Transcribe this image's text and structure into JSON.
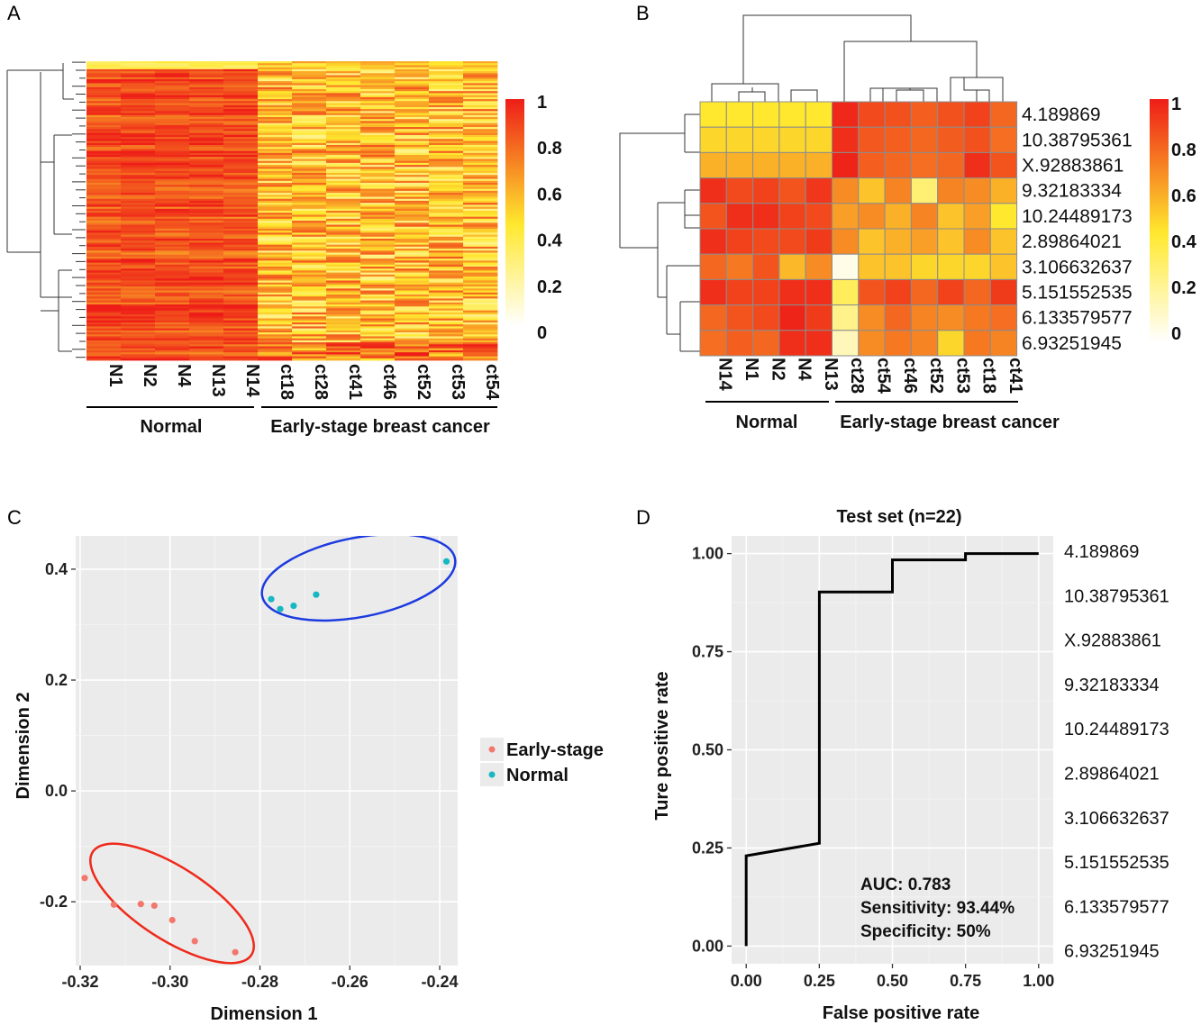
{
  "panels": {
    "A": "A",
    "B": "B",
    "C": "C",
    "D": "D"
  },
  "colors": {
    "high": "#ee1d18",
    "mid": "#ffe82e",
    "low": "#ffffff",
    "early": "#f2786d",
    "normal": "#17b8c2",
    "ellipse_normal": "#1c3adf",
    "ellipse_early": "#ee2a1b",
    "plot_bg": "#ebebeb"
  },
  "chart_data": [
    {
      "panel": "A",
      "type": "heatmap",
      "columns": [
        "N1",
        "N2",
        "N4",
        "N13",
        "N14",
        "ct18",
        "ct28",
        "ct41",
        "ct46",
        "ct52",
        "ct53",
        "ct54"
      ],
      "groups": [
        {
          "name": "Normal",
          "columns": [
            "N1",
            "N2",
            "N4",
            "N13",
            "N14"
          ]
        },
        {
          "name": "Early-stage breast cancer",
          "columns": [
            "ct18",
            "ct28",
            "ct41",
            "ct46",
            "ct52",
            "ct53",
            "ct54"
          ]
        }
      ],
      "colorbar": {
        "min": 0,
        "max": 1,
        "ticks": [
          "1",
          "0.8",
          "0.6",
          "0.4",
          "0.2",
          "0"
        ]
      },
      "row_dendrogram": true
    },
    {
      "panel": "B",
      "type": "heatmap",
      "columns": [
        "N14",
        "N1",
        "N2",
        "N4",
        "N13",
        "ct28",
        "ct54",
        "ct46",
        "ct52",
        "ct53",
        "ct18",
        "ct41"
      ],
      "rows": [
        "4.189869",
        "10.38795361",
        "X.92883861",
        "9.32183334",
        "10.24489173",
        "2.89864021",
        "3.106632637",
        "5.151552535",
        "6.133579577",
        "6.93251945"
      ],
      "values": [
        [
          0.45,
          0.45,
          0.45,
          0.45,
          0.45,
          0.97,
          0.88,
          0.86,
          0.82,
          0.86,
          0.9,
          0.8
        ],
        [
          0.5,
          0.5,
          0.5,
          0.5,
          0.5,
          0.95,
          0.84,
          0.82,
          0.8,
          0.83,
          0.86,
          0.78
        ],
        [
          0.6,
          0.6,
          0.6,
          0.6,
          0.6,
          0.98,
          0.82,
          0.8,
          0.78,
          0.8,
          0.95,
          0.85
        ],
        [
          0.95,
          0.88,
          0.9,
          0.85,
          0.93,
          0.7,
          0.55,
          0.72,
          0.3,
          0.72,
          0.7,
          0.6
        ],
        [
          0.85,
          0.95,
          0.95,
          0.9,
          0.88,
          0.65,
          0.7,
          0.6,
          0.72,
          0.55,
          0.65,
          0.45
        ],
        [
          0.95,
          0.9,
          0.88,
          0.88,
          0.92,
          0.7,
          0.55,
          0.6,
          0.65,
          0.55,
          0.7,
          0.55
        ],
        [
          0.8,
          0.75,
          0.85,
          0.58,
          0.7,
          0.05,
          0.55,
          0.55,
          0.5,
          0.5,
          0.5,
          0.55
        ],
        [
          0.95,
          0.9,
          0.9,
          0.95,
          0.95,
          0.35,
          0.85,
          0.9,
          0.8,
          0.9,
          0.8,
          0.92
        ],
        [
          0.8,
          0.85,
          0.88,
          0.98,
          0.92,
          0.25,
          0.7,
          0.8,
          0.72,
          0.7,
          0.75,
          0.78
        ],
        [
          0.78,
          0.82,
          0.8,
          0.95,
          0.95,
          0.15,
          0.7,
          0.75,
          0.72,
          0.5,
          0.75,
          0.72
        ]
      ],
      "groups": [
        {
          "name": "Normal",
          "columns": [
            "N14",
            "N1",
            "N2",
            "N4",
            "N13"
          ]
        },
        {
          "name": "Early-stage breast cancer",
          "columns": [
            "ct28",
            "ct54",
            "ct46",
            "ct52",
            "ct53",
            "ct18",
            "ct41"
          ]
        }
      ],
      "colorbar": {
        "min": 0,
        "max": 1,
        "ticks": [
          "1",
          "0.8",
          "0.6",
          "0.4",
          "0.2",
          "0"
        ]
      }
    },
    {
      "panel": "C",
      "type": "scatter",
      "xlabel": "Dimension 1",
      "ylabel": "Dimension 2",
      "xlim": [
        -0.321,
        -0.236
      ],
      "ylim": [
        -0.315,
        0.46
      ],
      "xticks": [
        "-0.32",
        "-0.30",
        "-0.28",
        "-0.26",
        "-0.24"
      ],
      "xtick_values": [
        -0.32,
        -0.3,
        -0.28,
        -0.26,
        -0.24
      ],
      "yticks": [
        "0.4",
        "0.2",
        "0.0",
        "-0.2"
      ],
      "ytick_values": [
        0.4,
        0.2,
        0.0,
        -0.2
      ],
      "series": [
        {
          "name": "Early-stage",
          "points": [
            [
              -0.319,
              -0.157
            ],
            [
              -0.3125,
              -0.205
            ],
            [
              -0.3065,
              -0.204
            ],
            [
              -0.3035,
              -0.207
            ],
            [
              -0.2995,
              -0.233
            ],
            [
              -0.2945,
              -0.271
            ],
            [
              -0.2855,
              -0.291
            ]
          ]
        },
        {
          "name": "Normal",
          "points": [
            [
              -0.2775,
              0.346
            ],
            [
              -0.2755,
              0.328
            ],
            [
              -0.2725,
              0.334
            ],
            [
              -0.2675,
              0.354
            ],
            [
              -0.2385,
              0.414
            ]
          ]
        }
      ],
      "legend": "right"
    },
    {
      "panel": "D",
      "type": "line",
      "title": "Test set (n=22)",
      "xlabel": "False positive rate",
      "ylabel": "Ture positive rate",
      "xlim": [
        -0.05,
        1.05
      ],
      "ylim": [
        -0.045,
        1.045
      ],
      "xticks": [
        "0.00",
        "0.25",
        "0.50",
        "0.75",
        "1.00"
      ],
      "xtick_values": [
        0,
        0.25,
        0.5,
        0.75,
        1.0
      ],
      "yticks": [
        "1.00",
        "0.75",
        "0.50",
        "0.25",
        "0.00"
      ],
      "ytick_values": [
        1.0,
        0.75,
        0.5,
        0.25,
        0.0
      ],
      "series": [
        {
          "points": [
            [
              0,
              0
            ],
            [
              0,
              0.23
            ],
            [
              0.25,
              0.262
            ],
            [
              0.25,
              0.902
            ],
            [
              0.5,
              0.902
            ],
            [
              0.5,
              0.984
            ],
            [
              0.75,
              0.984
            ],
            [
              0.75,
              1.0
            ],
            [
              1.0,
              1.0
            ]
          ]
        }
      ],
      "annotations": [
        "AUC: 0.783",
        "Sensitivity: 93.44%",
        "Specificity: 50%"
      ],
      "right_labels": [
        "4.189869",
        "10.38795361",
        "X.92883861",
        "9.32183334",
        "10.24489173",
        "2.89864021",
        "3.106632637",
        "5.151552535",
        "6.133579577",
        "6.93251945"
      ]
    }
  ]
}
